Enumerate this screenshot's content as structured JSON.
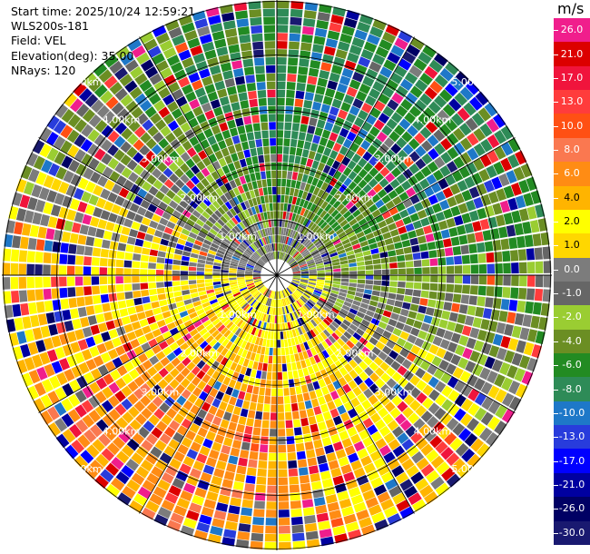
{
  "header": {
    "start_time": "Start time: 2025/10/24 12:59:21",
    "instrument": "WLS200s-181",
    "field": "Field: VEL",
    "elevation": "Elevation(deg): 35.00",
    "nrays": "NRays: 120"
  },
  "colorbar": {
    "unit": "m/s",
    "levels": [
      {
        "label": "26.0",
        "color": "#f01e8c"
      },
      {
        "label": "21.0",
        "color": "#dc0000"
      },
      {
        "label": "17.0",
        "color": "#f0143c"
      },
      {
        "label": "13.0",
        "color": "#ff3c3c"
      },
      {
        "label": "10.0",
        "color": "#ff5014"
      },
      {
        "label": "8.0",
        "color": "#fa7850"
      },
      {
        "label": "6.0",
        "color": "#ff8c14"
      },
      {
        "label": "4.0",
        "color": "#ffb400"
      },
      {
        "label": "2.0",
        "color": "#ffff00"
      },
      {
        "label": "1.0",
        "color": "#ffd700"
      },
      {
        "label": "0.0",
        "color": "#7c7c7c"
      },
      {
        "label": "-1.0",
        "color": "#666666"
      },
      {
        "label": "-2.0",
        "color": "#9acd32"
      },
      {
        "label": "-4.0",
        "color": "#6b8e23"
      },
      {
        "label": "-6.0",
        "color": "#228b22"
      },
      {
        "label": "-8.0",
        "color": "#2e8b57"
      },
      {
        "label": "-10.0",
        "color": "#1e78c8"
      },
      {
        "label": "-13.0",
        "color": "#283cdc"
      },
      {
        "label": "-17.0",
        "color": "#0000ff"
      },
      {
        "label": "-21.0",
        "color": "#0000a0"
      },
      {
        "label": "-26.0",
        "color": "#000064"
      },
      {
        "label": "-30.0",
        "color": "#191970"
      }
    ]
  },
  "chart_data": {
    "type": "heatmap",
    "projection": "polar PPI",
    "nrays": 120,
    "range_rings_km": [
      1,
      2,
      3,
      4,
      5
    ],
    "ring_labels": [
      "1.00km",
      "2.00km",
      "3.00km",
      "4.00km",
      "5.00km"
    ],
    "diagonal_lines": true,
    "velocity_pattern": {
      "toward_north_east": "negative (green/gray, -2 to -8 m/s)",
      "south_west": "positive (yellow/orange, 2 to 8 m/s)",
      "near_center": "near zero (gray/yellow)"
    }
  }
}
